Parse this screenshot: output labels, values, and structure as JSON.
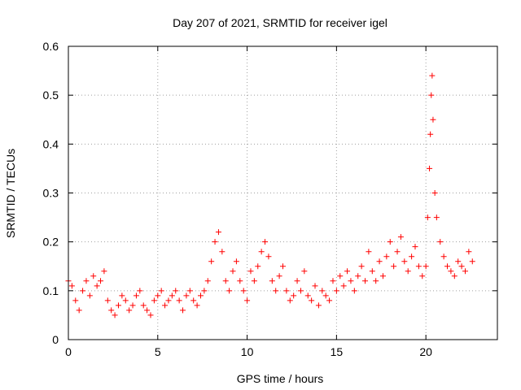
{
  "chart_data": {
    "type": "scatter",
    "title": "Day 207 of 2021, SRMTID for receiver igel",
    "xlabel": "GPS time / hours",
    "ylabel": "SRMTID / TECUs",
    "xlim": [
      0,
      24
    ],
    "ylim": [
      0,
      0.6
    ],
    "xticks": [
      0,
      5,
      10,
      15,
      20
    ],
    "yticks": [
      0,
      0.1,
      0.2,
      0.3,
      0.4,
      0.5,
      0.6
    ],
    "xtick_labels": [
      "0",
      "5",
      "10",
      "15",
      "20"
    ],
    "ytick_labels": [
      "0",
      "0.1",
      "0.2",
      "0.3",
      "0.4",
      "0.5",
      "0.6"
    ],
    "grid": true,
    "marker": "+",
    "color": "#ff0000",
    "series": [
      {
        "name": "SRMTID",
        "x": [
          0.0,
          0.2,
          0.4,
          0.6,
          0.8,
          1.0,
          1.2,
          1.4,
          1.6,
          1.8,
          2.0,
          2.2,
          2.4,
          2.6,
          2.8,
          3.0,
          3.2,
          3.4,
          3.6,
          3.8,
          4.0,
          4.2,
          4.4,
          4.6,
          4.8,
          5.0,
          5.2,
          5.4,
          5.6,
          5.8,
          6.0,
          6.2,
          6.4,
          6.6,
          6.8,
          7.0,
          7.2,
          7.4,
          7.6,
          7.8,
          8.0,
          8.2,
          8.4,
          8.6,
          8.8,
          9.0,
          9.2,
          9.4,
          9.6,
          9.8,
          10.0,
          10.2,
          10.4,
          10.6,
          10.8,
          11.0,
          11.2,
          11.4,
          11.6,
          11.8,
          12.0,
          12.2,
          12.4,
          12.6,
          12.8,
          13.0,
          13.2,
          13.4,
          13.6,
          13.8,
          14.0,
          14.2,
          14.4,
          14.6,
          14.8,
          15.0,
          15.2,
          15.4,
          15.6,
          15.8,
          16.0,
          16.2,
          16.4,
          16.6,
          16.8,
          17.0,
          17.2,
          17.4,
          17.6,
          17.8,
          18.0,
          18.2,
          18.4,
          18.6,
          18.8,
          19.0,
          19.2,
          19.4,
          19.6,
          19.8,
          20.0,
          20.1,
          20.2,
          20.25,
          20.3,
          20.35,
          20.4,
          20.5,
          20.6,
          20.8,
          21.0,
          21.2,
          21.4,
          21.6,
          21.8,
          22.0,
          22.2,
          22.4,
          22.6
        ],
        "y": [
          0.12,
          0.11,
          0.08,
          0.06,
          0.1,
          0.12,
          0.09,
          0.13,
          0.11,
          0.12,
          0.14,
          0.08,
          0.06,
          0.05,
          0.07,
          0.09,
          0.08,
          0.06,
          0.07,
          0.09,
          0.1,
          0.07,
          0.06,
          0.05,
          0.08,
          0.09,
          0.1,
          0.07,
          0.08,
          0.09,
          0.1,
          0.08,
          0.06,
          0.09,
          0.1,
          0.08,
          0.07,
          0.09,
          0.1,
          0.12,
          0.16,
          0.2,
          0.22,
          0.18,
          0.12,
          0.1,
          0.14,
          0.16,
          0.12,
          0.1,
          0.08,
          0.14,
          0.12,
          0.15,
          0.18,
          0.2,
          0.17,
          0.12,
          0.1,
          0.13,
          0.15,
          0.1,
          0.08,
          0.09,
          0.12,
          0.1,
          0.14,
          0.09,
          0.08,
          0.11,
          0.07,
          0.1,
          0.09,
          0.08,
          0.12,
          0.1,
          0.13,
          0.11,
          0.14,
          0.12,
          0.1,
          0.13,
          0.15,
          0.12,
          0.18,
          0.14,
          0.12,
          0.16,
          0.13,
          0.17,
          0.2,
          0.15,
          0.18,
          0.21,
          0.16,
          0.14,
          0.17,
          0.19,
          0.15,
          0.13,
          0.15,
          0.25,
          0.35,
          0.42,
          0.5,
          0.54,
          0.45,
          0.3,
          0.25,
          0.2,
          0.17,
          0.15,
          0.14,
          0.13,
          0.16,
          0.15,
          0.14,
          0.18,
          0.16
        ]
      }
    ]
  }
}
